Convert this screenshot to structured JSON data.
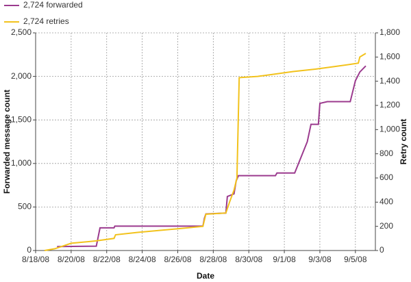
{
  "chart_data": {
    "type": "line",
    "x_label": "Date",
    "y_label": "Forwarded message count",
    "y2_label": "Retry count",
    "grid": true,
    "legend": "top-left",
    "xlim": [
      "2008-08-18T00:00",
      "2008-09-06T03:00"
    ],
    "xticks": [
      {
        "value": "2008-08-18T00:00",
        "label": "8/18/08"
      },
      {
        "value": "2008-08-20T00:00",
        "label": "8/20/08"
      },
      {
        "value": "2008-08-22T00:00",
        "label": "8/22/08"
      },
      {
        "value": "2008-08-24T00:00",
        "label": "8/24/08"
      },
      {
        "value": "2008-08-26T00:00",
        "label": "8/26/08"
      },
      {
        "value": "2008-08-28T00:00",
        "label": "8/28/08"
      },
      {
        "value": "2008-08-30T00:00",
        "label": "8/30/08"
      },
      {
        "value": "2008-09-01T00:00",
        "label": "9/1/08"
      },
      {
        "value": "2008-09-03T00:00",
        "label": "9/3/08"
      },
      {
        "value": "2008-09-05T00:00",
        "label": "9/5/08"
      }
    ],
    "ylim": [
      0,
      2500
    ],
    "yticks": [
      0,
      500,
      {
        "value": 1000,
        "label": "1,000"
      },
      {
        "value": 1500,
        "label": "1,500"
      },
      {
        "value": 2000,
        "label": "2,000"
      },
      {
        "value": 2500,
        "label": "2,500"
      }
    ],
    "y2lim": [
      0,
      1800
    ],
    "y2ticks": [
      0,
      200,
      400,
      600,
      800,
      {
        "value": 1000,
        "label": "1,000"
      },
      {
        "value": 1200,
        "label": "1,200"
      },
      {
        "value": 1400,
        "label": "1,400"
      },
      {
        "value": 1600,
        "label": "1,600"
      },
      {
        "value": 1800,
        "label": "1,800"
      }
    ],
    "series": [
      {
        "name": "2,724 forwarded",
        "color": "#9b3a8e",
        "axis": "y",
        "x": [
          "2008-08-19T05:00",
          "2008-08-21T10:00",
          "2008-08-21T15:00",
          "2008-08-22T10:00",
          "2008-08-22T11:00",
          "2008-08-27T10:00",
          "2008-08-27T12:00",
          "2008-08-27T14:00",
          "2008-08-28T17:00",
          "2008-08-28T19:00",
          "2008-08-29T04:00",
          "2008-08-29T07:00",
          "2008-08-29T10:00",
          "2008-08-31T12:00",
          "2008-08-31T14:00",
          "2008-09-01T14:00",
          "2008-09-02T07:00",
          "2008-09-02T12:00",
          "2008-09-02T22:00",
          "2008-09-03T00:00",
          "2008-09-03T10:00",
          "2008-09-04T17:00",
          "2008-09-05T00:00",
          "2008-09-05T06:00",
          "2008-09-05T14:00"
        ],
        "values": [
          45,
          50,
          260,
          260,
          280,
          280,
          370,
          420,
          430,
          620,
          650,
          800,
          860,
          860,
          890,
          890,
          1250,
          1450,
          1450,
          1690,
          1710,
          1710,
          1950,
          2050,
          2120
        ]
      },
      {
        "name": "2,724 retries",
        "color": "#f2c21b",
        "axis": "y2",
        "x": [
          "2008-08-18T12:00",
          "2008-08-19T02:00",
          "2008-08-20T00:00",
          "2008-08-21T10:00",
          "2008-08-22T10:00",
          "2008-08-22T12:00",
          "2008-08-23T18:00",
          "2008-08-26T00:00",
          "2008-08-27T10:00",
          "2008-08-27T14:00",
          "2008-08-28T17:00",
          "2008-08-28T22:00",
          "2008-08-29T04:00",
          "2008-08-29T08:00",
          "2008-08-29T11:00",
          "2008-08-30T12:00",
          "2008-08-31T12:00",
          "2008-09-01T12:00",
          "2008-09-02T18:00",
          "2008-09-03T18:00",
          "2008-09-04T18:00",
          "2008-09-05T04:00",
          "2008-09-05T06:00",
          "2008-09-05T14:00"
        ],
        "values": [
          0,
          15,
          60,
          80,
          100,
          130,
          150,
          180,
          200,
          300,
          310,
          400,
          500,
          600,
          1430,
          1440,
          1460,
          1480,
          1500,
          1520,
          1540,
          1550,
          1600,
          1630
        ]
      }
    ]
  }
}
